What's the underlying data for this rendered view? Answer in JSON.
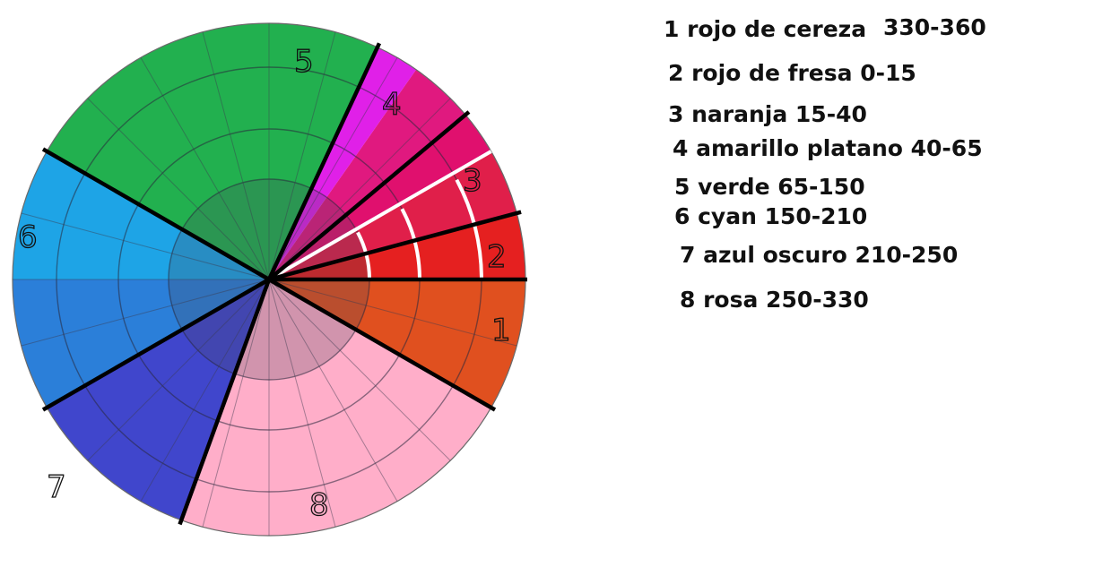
{
  "legend": [
    {
      "text": "1 rojo de cereza"
    },
    {
      "text": "2 rojo de fresa 0-15"
    },
    {
      "text": "3 naranja  15-40"
    },
    {
      "text": "4 amarillo platano 40-65"
    },
    {
      "text": "5 verde 65-150"
    },
    {
      "text": "6 cyan 150-210"
    },
    {
      "text": "7 azul oscuro 210-250"
    },
    {
      "text": "8 rosa 250-330"
    }
  ],
  "legend_extra": "330-360",
  "wheel": {
    "sectors": [
      {
        "from": 0,
        "to": 15,
        "color": "#e52020"
      },
      {
        "from": 15,
        "to": 30,
        "color": "#e01f4a"
      },
      {
        "from": 30,
        "to": 40,
        "color": "#e0106e"
      },
      {
        "from": 40,
        "to": 55,
        "color": "#e0197f"
      },
      {
        "from": 55,
        "to": 65,
        "color": "#e020e8"
      },
      {
        "from": 65,
        "to": 150,
        "color": "#22b04f"
      },
      {
        "from": 150,
        "to": 180,
        "color": "#1ea4e6"
      },
      {
        "from": 180,
        "to": 210,
        "color": "#2b7fd9"
      },
      {
        "from": 210,
        "to": 250,
        "color": "#4046cc"
      },
      {
        "from": 250,
        "to": 330,
        "color": "#ffaec9"
      },
      {
        "from": 330,
        "to": 360,
        "color": "#e0501f"
      }
    ],
    "hand_labels": [
      "1",
      "2",
      "3",
      "4",
      "5",
      "6",
      "7",
      "8"
    ]
  }
}
